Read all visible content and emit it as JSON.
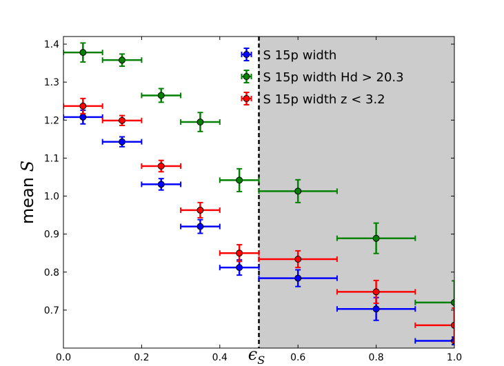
{
  "chart_data": {
    "type": "scatter",
    "title": "",
    "xlabel": "ϵ",
    "xlabel_sub": "S",
    "ylabel": "mean",
    "ylabel_symbol": "S",
    "xlim": [
      0.0,
      1.0
    ],
    "ylim": [
      0.6,
      1.42
    ],
    "xticks": [
      "0.0",
      "0.2",
      "0.4",
      "0.6",
      "0.8",
      "1.0"
    ],
    "xtick_values": [
      0.0,
      0.2,
      0.4,
      0.6,
      0.8,
      1.0
    ],
    "yticks": [
      "0.7",
      "0.8",
      "0.9",
      "1.0",
      "1.1",
      "1.2",
      "1.3",
      "1.4"
    ],
    "ytick_values": [
      0.7,
      0.8,
      0.9,
      1.0,
      1.1,
      1.2,
      1.3,
      1.4
    ],
    "threshold_x": 0.5,
    "shaded_region": [
      0.5,
      1.0
    ],
    "shade_color": "#cccccc",
    "legend_position": "upper-middle",
    "series": [
      {
        "name": "S 15p width",
        "color": "#0000ff",
        "points": [
          {
            "x": 0.05,
            "y": 1.208,
            "xerr": 0.05,
            "yerr": 0.018
          },
          {
            "x": 0.15,
            "y": 1.143,
            "xerr": 0.05,
            "yerr": 0.013
          },
          {
            "x": 0.25,
            "y": 1.031,
            "xerr": 0.05,
            "yerr": 0.015
          },
          {
            "x": 0.35,
            "y": 0.92,
            "xerr": 0.05,
            "yerr": 0.018
          },
          {
            "x": 0.45,
            "y": 0.812,
            "xerr": 0.05,
            "yerr": 0.02
          },
          {
            "x": 0.6,
            "y": 0.784,
            "xerr": 0.1,
            "yerr": 0.022
          },
          {
            "x": 0.8,
            "y": 0.703,
            "xerr": 0.1,
            "yerr": 0.03
          },
          {
            "x": 1.0,
            "y": 0.619,
            "xerr": 0.1,
            "yerr": 0.01
          }
        ]
      },
      {
        "name": "S 15p width  Hd > 20.3",
        "color": "#008000",
        "points": [
          {
            "x": 0.05,
            "y": 1.378,
            "xerr": 0.05,
            "yerr": 0.025
          },
          {
            "x": 0.15,
            "y": 1.358,
            "xerr": 0.05,
            "yerr": 0.016
          },
          {
            "x": 0.25,
            "y": 1.265,
            "xerr": 0.05,
            "yerr": 0.018
          },
          {
            "x": 0.35,
            "y": 1.195,
            "xerr": 0.05,
            "yerr": 0.025
          },
          {
            "x": 0.45,
            "y": 1.042,
            "xerr": 0.05,
            "yerr": 0.03
          },
          {
            "x": 0.6,
            "y": 1.013,
            "xerr": 0.1,
            "yerr": 0.03
          },
          {
            "x": 0.8,
            "y": 0.889,
            "xerr": 0.1,
            "yerr": 0.04
          },
          {
            "x": 1.0,
            "y": 0.72,
            "xerr": 0.1,
            "yerr": 0.057
          }
        ]
      },
      {
        "name": "S 15p width  z < 3.2",
        "color": "#ff0000",
        "points": [
          {
            "x": 0.05,
            "y": 1.237,
            "xerr": 0.05,
            "yerr": 0.02
          },
          {
            "x": 0.15,
            "y": 1.199,
            "xerr": 0.05,
            "yerr": 0.013
          },
          {
            "x": 0.25,
            "y": 1.079,
            "xerr": 0.05,
            "yerr": 0.015
          },
          {
            "x": 0.35,
            "y": 0.963,
            "xerr": 0.05,
            "yerr": 0.02
          },
          {
            "x": 0.45,
            "y": 0.85,
            "xerr": 0.05,
            "yerr": 0.022
          },
          {
            "x": 0.6,
            "y": 0.834,
            "xerr": 0.1,
            "yerr": 0.022
          },
          {
            "x": 0.8,
            "y": 0.748,
            "xerr": 0.1,
            "yerr": 0.03
          },
          {
            "x": 1.0,
            "y": 0.66,
            "xerr": 0.1,
            "yerr": 0.045
          }
        ]
      }
    ]
  }
}
